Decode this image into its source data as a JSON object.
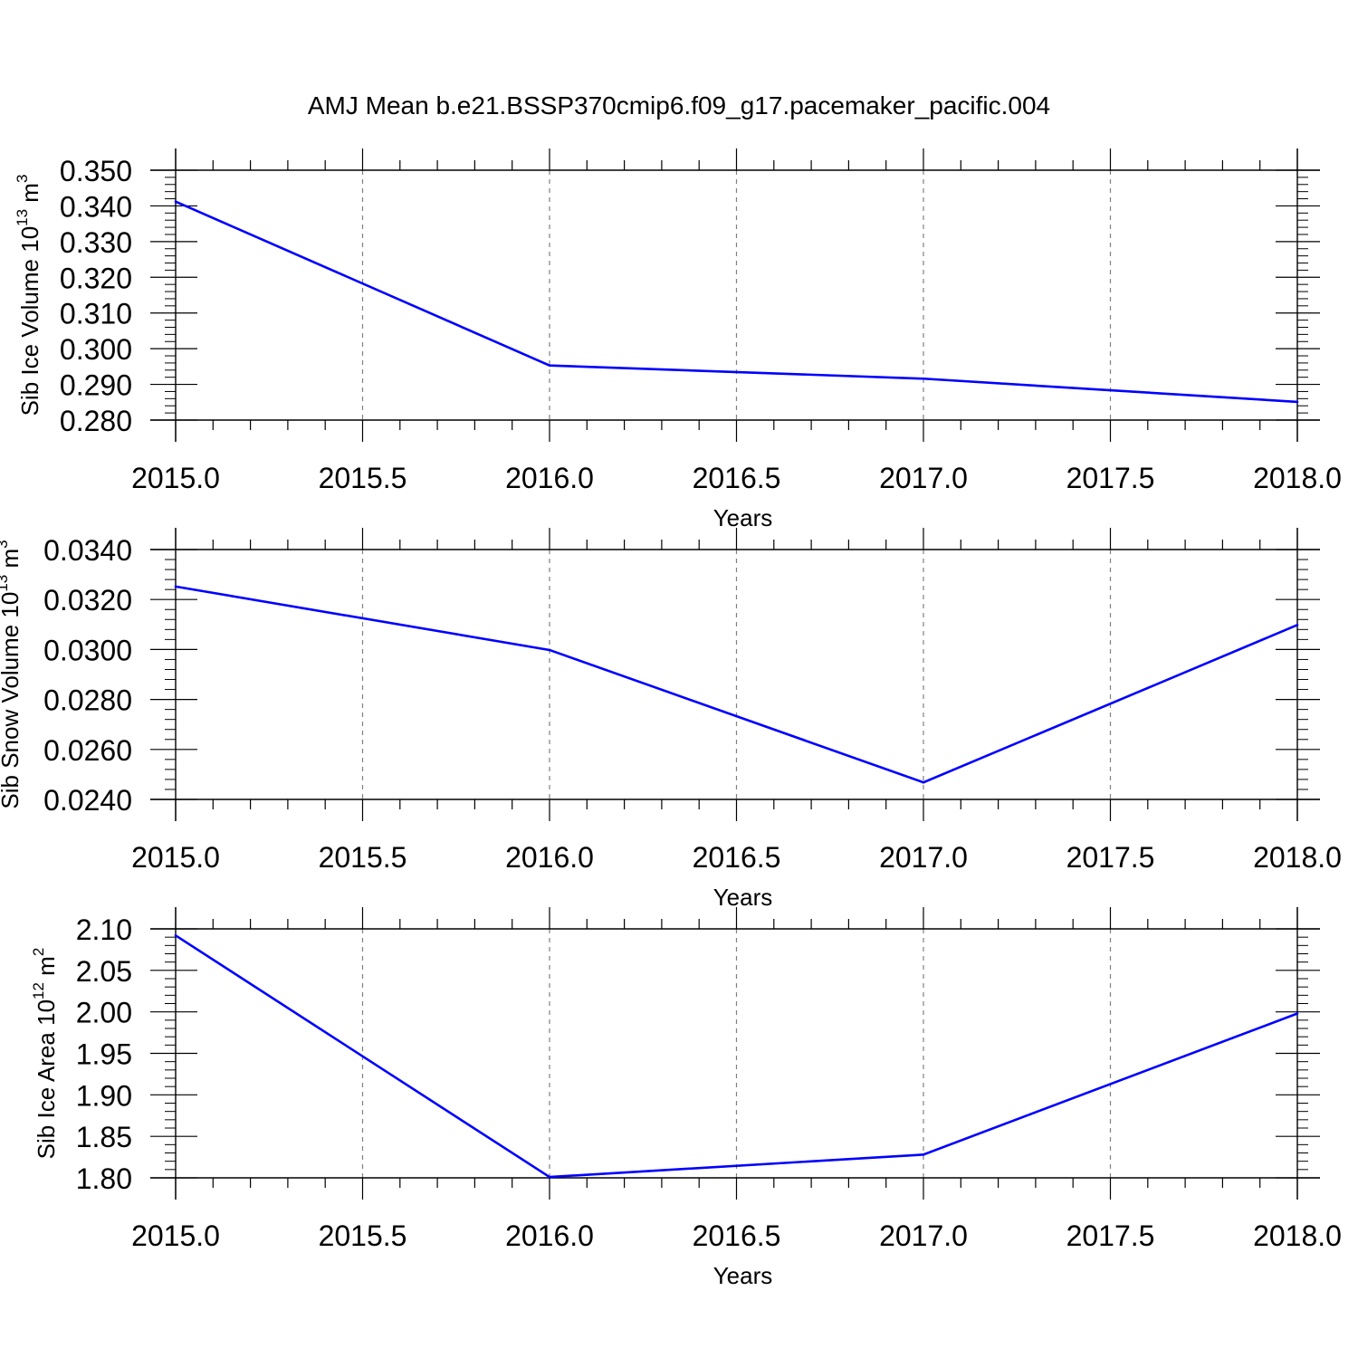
{
  "figure": {
    "title": "AMJ Mean b.e21.BSSP370cmip6.f09_g17.pacemaker_pacific.004"
  },
  "colors": {
    "line": "#0000ff",
    "axes": "#000000",
    "grid": "#808080",
    "background": "#ffffff"
  },
  "chart_data": [
    {
      "type": "line",
      "xlabel": "Years",
      "ylabel": {
        "prefix": "Sib Ice Volume 10",
        "exp": "13",
        "unit": " m",
        "unit_exp": "3"
      },
      "x": [
        2015.0,
        2016.0,
        2017.0,
        2018.0
      ],
      "series": [
        {
          "values": [
            0.3412,
            0.2953,
            0.2916,
            0.2851
          ]
        }
      ],
      "xlim": [
        2015.0,
        2018.0
      ],
      "ylim": [
        0.28,
        0.35
      ],
      "xticks": [
        "2015.0",
        "2015.5",
        "2016.0",
        "2016.5",
        "2017.0",
        "2017.5",
        "2018.0"
      ],
      "yticks": [
        "0.280",
        "0.290",
        "0.300",
        "0.310",
        "0.320",
        "0.330",
        "0.340",
        "0.350"
      ],
      "grid": "vertical dashed at x ticks"
    },
    {
      "type": "line",
      "xlabel": "Years",
      "ylabel": {
        "prefix": "Sib Snow Volume 10",
        "exp": "13",
        "unit": " m",
        "unit_exp": "3"
      },
      "x": [
        2015.0,
        2016.0,
        2017.0,
        2018.0
      ],
      "series": [
        {
          "values": [
            0.03252,
            0.02998,
            0.02468,
            0.03098
          ]
        }
      ],
      "xlim": [
        2015.0,
        2018.0
      ],
      "ylim": [
        0.024,
        0.034
      ],
      "xticks": [
        "2015.0",
        "2015.5",
        "2016.0",
        "2016.5",
        "2017.0",
        "2017.5",
        "2018.0"
      ],
      "yticks": [
        "0.0240",
        "0.0260",
        "0.0280",
        "0.0300",
        "0.0320",
        "0.0340"
      ],
      "grid": "vertical dashed at x ticks"
    },
    {
      "type": "line",
      "xlabel": "Years",
      "ylabel": {
        "prefix": "Sib Ice Area 10",
        "exp": "12",
        "unit": " m",
        "unit_exp": "2"
      },
      "x": [
        2015.0,
        2016.0,
        2017.0,
        2018.0
      ],
      "series": [
        {
          "values": [
            2.092,
            1.801,
            1.828,
            1.998
          ]
        }
      ],
      "xlim": [
        2015.0,
        2018.0
      ],
      "ylim": [
        1.8,
        2.1
      ],
      "xticks": [
        "2015.0",
        "2015.5",
        "2016.0",
        "2016.5",
        "2017.0",
        "2017.5",
        "2018.0"
      ],
      "yticks": [
        "1.80",
        "1.85",
        "1.90",
        "1.95",
        "2.00",
        "2.05",
        "2.10"
      ],
      "grid": "vertical dashed at x ticks"
    }
  ]
}
